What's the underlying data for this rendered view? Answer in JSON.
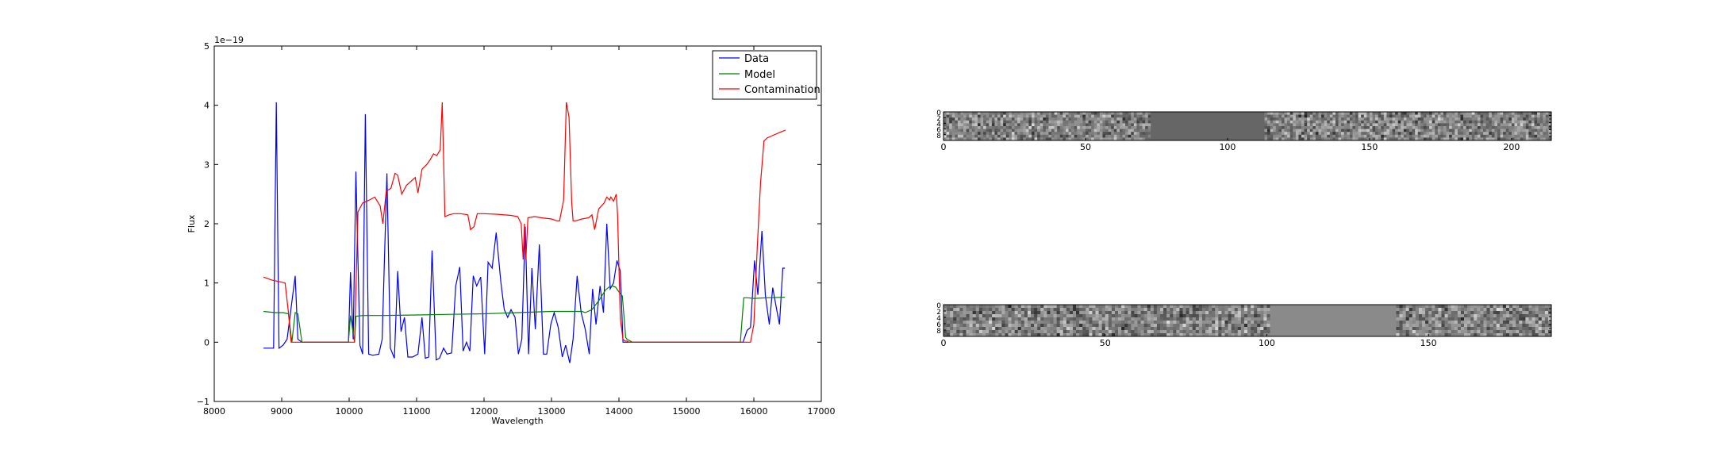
{
  "chart_data": [
    {
      "type": "line",
      "xlabel": "Wavelength",
      "ylabel": "Flux",
      "offset_text": "1e−19",
      "xlim": [
        8000,
        17000
      ],
      "ylim": [
        -1,
        5
      ],
      "xticks": [
        8000,
        9000,
        10000,
        11000,
        12000,
        13000,
        14000,
        15000,
        16000,
        17000
      ],
      "yticks": [
        -1,
        0,
        1,
        2,
        3,
        4,
        5
      ],
      "legend_position": "top-right",
      "series": [
        {
          "name": "Data",
          "color": "#0000ff",
          "x": [
            8730,
            8880,
            8920,
            8960,
            9020,
            9080,
            9200,
            9240,
            9300,
            9990,
            10020,
            10060,
            10100,
            10160,
            10200,
            10240,
            10290,
            10350,
            10440,
            10490,
            10560,
            10610,
            10670,
            10720,
            10770,
            10820,
            10870,
            10940,
            11020,
            11080,
            11130,
            11180,
            11230,
            11290,
            11340,
            11400,
            11450,
            11520,
            11580,
            11640,
            11690,
            11740,
            11790,
            11840,
            11890,
            11950,
            12010,
            12060,
            12120,
            12180,
            12250,
            12300,
            12350,
            12400,
            12460,
            12510,
            12560,
            12610,
            12660,
            12710,
            12760,
            12820,
            12880,
            12930,
            12990,
            13040,
            13100,
            13160,
            13210,
            13270,
            13320,
            13380,
            13440,
            13500,
            13560,
            13610,
            13660,
            13720,
            13770,
            13820,
            13870,
            13920,
            13970,
            14020,
            14060,
            14110,
            14160,
            15840,
            15900,
            15950,
            16010,
            16060,
            16120,
            16170,
            16230,
            16280,
            16330,
            16380,
            16430,
            16460
          ],
          "y": [
            -0.1,
            -0.1,
            4.05,
            -0.1,
            -0.05,
            0.05,
            1.12,
            0.05,
            0.0,
            0.0,
            1.18,
            0.05,
            2.88,
            -0.05,
            -0.2,
            3.85,
            -0.2,
            -0.22,
            -0.2,
            0.05,
            2.85,
            -0.1,
            -0.27,
            1.2,
            0.18,
            0.42,
            -0.25,
            -0.25,
            -0.2,
            0.42,
            -0.27,
            -0.25,
            1.55,
            -0.3,
            -0.27,
            -0.1,
            -0.2,
            -0.18,
            0.95,
            1.27,
            -0.15,
            0.0,
            -0.15,
            1.12,
            0.95,
            1.1,
            -0.2,
            1.35,
            1.25,
            1.85,
            1.0,
            0.55,
            0.42,
            0.55,
            0.42,
            -0.2,
            0.05,
            1.95,
            -0.2,
            1.25,
            0.22,
            1.65,
            -0.2,
            -0.2,
            0.3,
            0.5,
            0.25,
            -0.25,
            -0.05,
            -0.35,
            0.05,
            1.12,
            0.5,
            0.22,
            -0.2,
            0.9,
            0.3,
            0.95,
            0.5,
            2.0,
            0.9,
            1.0,
            1.38,
            1.2,
            0.0,
            0.0,
            0.0,
            0.0,
            0.2,
            0.25,
            1.38,
            0.8,
            1.88,
            0.8,
            0.3,
            0.92,
            0.6,
            0.3,
            1.25,
            1.25
          ]
        },
        {
          "name": "Model",
          "color": "#008000",
          "x": [
            8730,
            8900,
            9020,
            9100,
            9150,
            9200,
            9240,
            9300,
            9990,
            10020,
            10080,
            10100,
            10200,
            10500,
            11000,
            11500,
            12000,
            12500,
            13000,
            13450,
            13500,
            13600,
            13700,
            13800,
            13850,
            13900,
            13950,
            14000,
            14050,
            14100,
            14120,
            14200,
            15800,
            15850,
            15900,
            16000,
            16200,
            16460
          ],
          "y": [
            0.52,
            0.5,
            0.5,
            0.48,
            0.0,
            0.5,
            0.48,
            0.0,
            0.0,
            0.45,
            0.0,
            0.44,
            0.45,
            0.45,
            0.46,
            0.47,
            0.48,
            0.5,
            0.52,
            0.52,
            0.5,
            0.55,
            0.7,
            0.88,
            0.93,
            0.95,
            0.93,
            0.85,
            0.78,
            0.08,
            0.05,
            0.0,
            0.0,
            0.75,
            0.75,
            0.74,
            0.75,
            0.76
          ]
        },
        {
          "name": "Contamination",
          "color": "#ff0000",
          "x": [
            8730,
            8850,
            8980,
            9050,
            9100,
            9140,
            9200,
            9300,
            9990,
            10020,
            10080,
            10130,
            10200,
            10300,
            10380,
            10460,
            10500,
            10550,
            10620,
            10680,
            10720,
            10780,
            10850,
            10920,
            10980,
            11020,
            11080,
            11150,
            11200,
            11250,
            11300,
            11350,
            11380,
            11420,
            11480,
            11550,
            11650,
            11760,
            11800,
            11850,
            11900,
            12000,
            12200,
            12400,
            12500,
            12550,
            12580,
            12600,
            12620,
            12650,
            12750,
            12850,
            13000,
            13080,
            13120,
            13180,
            13220,
            13260,
            13300,
            13320,
            13360,
            13450,
            13550,
            13600,
            13640,
            13700,
            13780,
            13820,
            13860,
            13880,
            13920,
            13960,
            13980,
            14020,
            14060,
            14090,
            14120,
            14150,
            14200,
            14300,
            15800,
            15950,
            16000,
            16050,
            16100,
            16150,
            16200,
            16300,
            16400,
            16470
          ],
          "y": [
            1.1,
            1.05,
            1.02,
            1.0,
            0.5,
            0.0,
            0.0,
            0.0,
            0.0,
            0.0,
            0.0,
            2.2,
            2.35,
            2.4,
            2.45,
            2.3,
            2.0,
            2.55,
            2.6,
            2.85,
            2.82,
            2.5,
            2.65,
            2.72,
            2.78,
            2.52,
            2.92,
            3.0,
            3.08,
            3.18,
            3.15,
            3.25,
            4.05,
            2.12,
            2.15,
            2.17,
            2.17,
            2.15,
            1.9,
            1.95,
            2.17,
            2.17,
            2.16,
            2.14,
            2.12,
            2.0,
            1.4,
            2.0,
            1.4,
            2.1,
            2.12,
            2.1,
            2.08,
            2.05,
            2.05,
            2.4,
            4.05,
            3.8,
            2.35,
            2.05,
            2.05,
            2.08,
            2.1,
            2.15,
            1.9,
            2.25,
            2.35,
            2.45,
            2.4,
            2.45,
            2.38,
            2.5,
            2.15,
            0.4,
            0.05,
            0.02,
            0.02,
            0.0,
            0.0,
            0.0,
            0.0,
            0.0,
            0.3,
            1.6,
            2.7,
            3.4,
            3.45,
            3.5,
            3.55,
            3.58
          ]
        }
      ]
    },
    {
      "type": "heatmap",
      "x_ticks": [
        0,
        50,
        100,
        150,
        200
      ],
      "y_ticks": [
        0,
        2,
        4,
        6,
        8
      ],
      "xlim": [
        0,
        214
      ],
      "ylim": [
        10,
        0
      ],
      "colormap": "gray",
      "masked_columns": [
        73,
        113
      ]
    },
    {
      "type": "heatmap",
      "x_ticks": [
        0,
        50,
        100,
        150
      ],
      "y_ticks": [
        0,
        2,
        4,
        6,
        8
      ],
      "xlim": [
        0,
        188
      ],
      "ylim": [
        10,
        0
      ],
      "colormap": "gray",
      "masked_columns": [
        101,
        140
      ]
    }
  ]
}
